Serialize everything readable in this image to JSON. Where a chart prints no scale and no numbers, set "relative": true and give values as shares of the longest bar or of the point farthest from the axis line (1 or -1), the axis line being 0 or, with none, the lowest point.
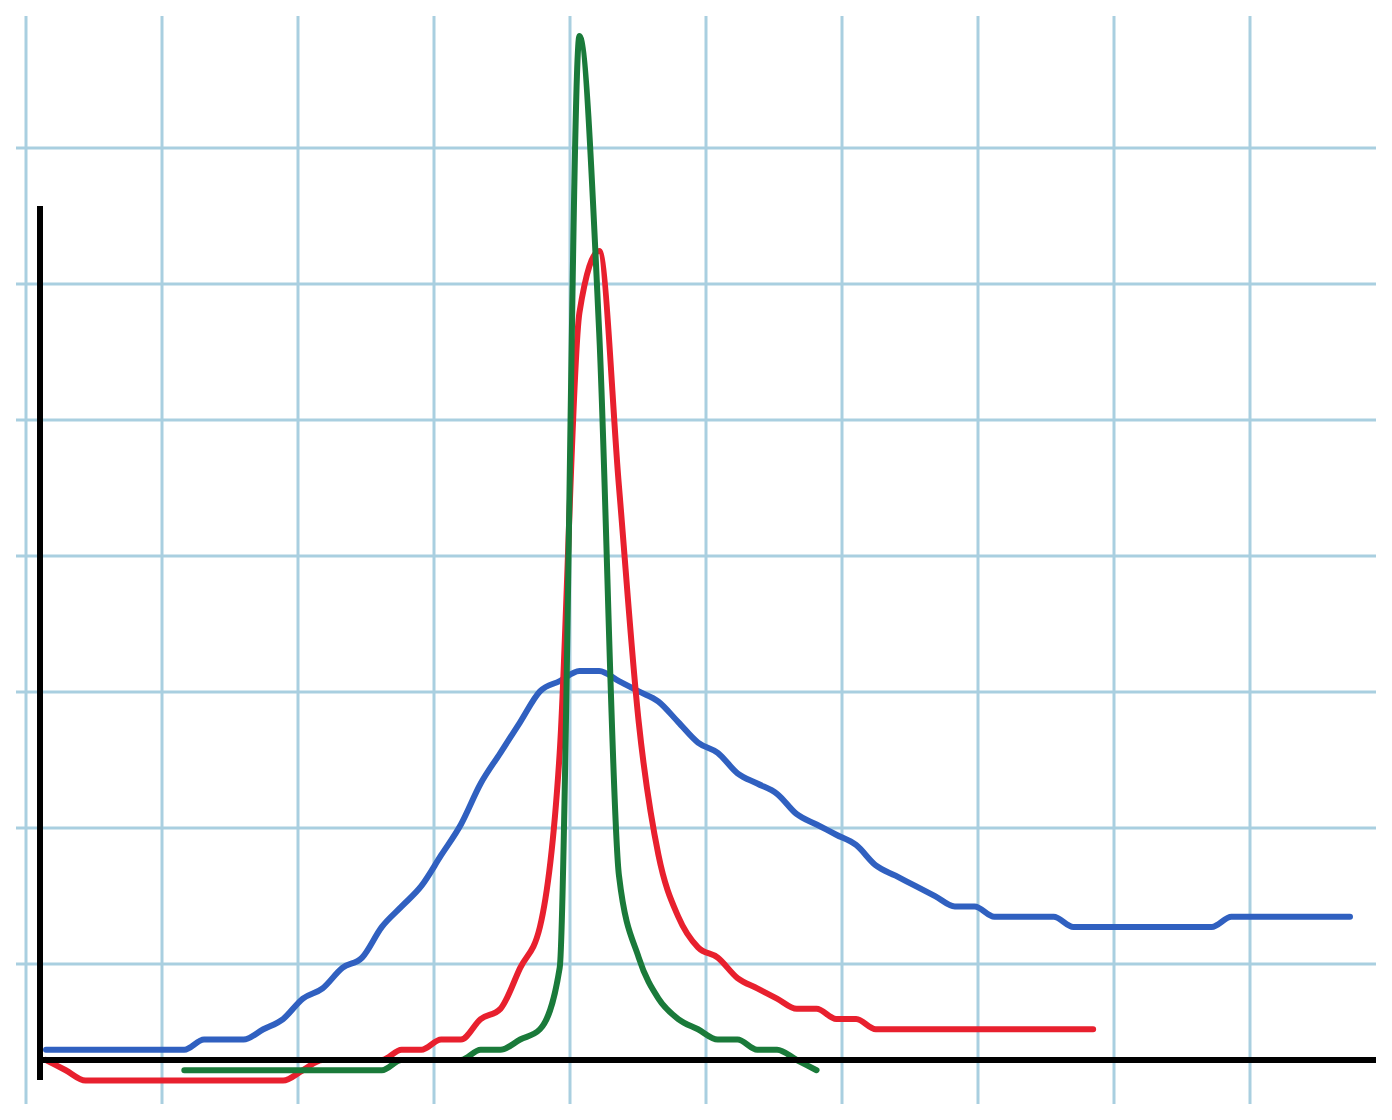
{
  "chart_data": {
    "type": "line",
    "relative": true,
    "grid": true,
    "categories": [
      null,
      null,
      null,
      null,
      null,
      null,
      null,
      null,
      null,
      null,
      null,
      null,
      null,
      null,
      null,
      null,
      null,
      null,
      null,
      null,
      null,
      null,
      null,
      null,
      null,
      null,
      null,
      null,
      null,
      null,
      null,
      null,
      null,
      null,
      null,
      null,
      null,
      null,
      null,
      null,
      null,
      null,
      null,
      null,
      null,
      null,
      null,
      null,
      null,
      null,
      null,
      null,
      null,
      null,
      null,
      null,
      null,
      null,
      null,
      null,
      null,
      null,
      null,
      null,
      null,
      null,
      null
    ],
    "series": [
      {
        "color": "#3060c0",
        "values": [
          0.01,
          0.01,
          0.01,
          0.01,
          0.01,
          0.01,
          0.01,
          0.01,
          0.02,
          0.02,
          0.02,
          0.03,
          0.04,
          0.06,
          0.07,
          0.09,
          0.1,
          0.13,
          0.15,
          0.17,
          0.2,
          0.23,
          0.27,
          0.3,
          0.33,
          0.36,
          0.37,
          0.38,
          0.38,
          0.37,
          0.36,
          0.35,
          0.33,
          0.31,
          0.3,
          0.28,
          0.27,
          0.26,
          0.24,
          0.23,
          0.22,
          0.21,
          0.19,
          0.18,
          0.17,
          0.16,
          0.15,
          0.15,
          0.14,
          0.14,
          0.14,
          0.14,
          0.13,
          0.13,
          0.13,
          0.13,
          0.13,
          0.13,
          0.13,
          0.13,
          0.14,
          0.14,
          0.14,
          0.14,
          0.14,
          0.14,
          0.14
        ]
      },
      {
        "color": "#e8202e",
        "values": [
          0,
          -0.01,
          -0.02,
          -0.02,
          -0.02,
          -0.02,
          -0.02,
          -0.02,
          -0.02,
          -0.02,
          -0.02,
          -0.02,
          -0.02,
          -0.01,
          0,
          0,
          0,
          0,
          0.01,
          0.01,
          0.02,
          0.02,
          0.04,
          0.05,
          0.09,
          0.13,
          0.3,
          0.73,
          0.79,
          0.56,
          0.33,
          0.2,
          0.14,
          0.11,
          0.1,
          0.08,
          0.07,
          0.06,
          0.05,
          0.05,
          0.04,
          0.04,
          0.03,
          0.03,
          0.03,
          0.03,
          0.03,
          0.03,
          0.03,
          0.03,
          0.03,
          0.03,
          0.03,
          0.03,
          null,
          null,
          null,
          null,
          null,
          null,
          null,
          null,
          null,
          null,
          null,
          null,
          null
        ]
      },
      {
        "color": "#1a7a3a",
        "values": [
          null,
          null,
          null,
          null,
          null,
          null,
          null,
          -0.01,
          -0.01,
          -0.01,
          -0.01,
          -0.01,
          -0.01,
          -0.01,
          -0.01,
          -0.01,
          -0.01,
          -0.01,
          0,
          0,
          0,
          0,
          0.01,
          0.01,
          0.02,
          0.03,
          0.09,
          1,
          0.71,
          0.18,
          0.1,
          0.06,
          0.04,
          0.03,
          0.02,
          0.02,
          0.01,
          0.01,
          0,
          -0.01,
          null,
          null,
          null,
          null,
          null,
          null,
          null,
          null,
          null,
          null,
          null,
          null,
          null,
          null,
          null,
          null,
          null,
          null,
          null,
          null,
          null,
          null,
          null,
          null,
          null,
          null,
          null
        ]
      }
    ]
  }
}
